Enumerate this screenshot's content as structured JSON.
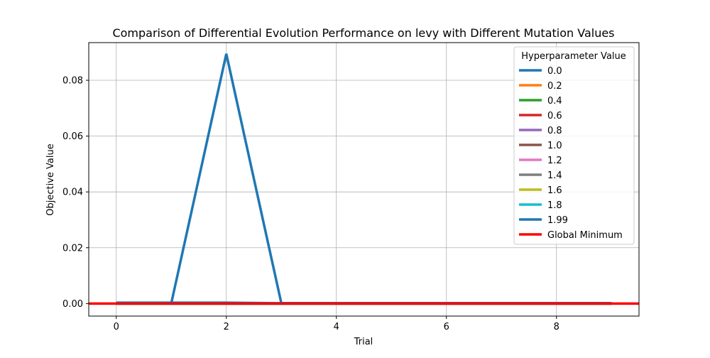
{
  "chart_data": {
    "type": "line",
    "title": "Comparison of Differential Evolution Performance on levy with Different Mutation Values",
    "xlabel": "Trial",
    "ylabel": "Objective Value",
    "xlim": [
      -0.5,
      9.5
    ],
    "ylim": [
      -0.0045,
      0.0935
    ],
    "xticks": [
      0,
      2,
      4,
      6,
      8
    ],
    "xtick_labels": [
      "0",
      "2",
      "4",
      "6",
      "8"
    ],
    "yticks": [
      0.0,
      0.02,
      0.04,
      0.06,
      0.08
    ],
    "ytick_labels": [
      "0.00",
      "0.02",
      "0.04",
      "0.06",
      "0.08"
    ],
    "grid": true,
    "legend": {
      "title": "Hyperparameter Value",
      "placement": "upper-right"
    },
    "x": [
      0,
      1,
      2,
      3,
      4,
      5,
      6,
      7,
      8,
      9
    ],
    "series": [
      {
        "name": "0.0",
        "color": "#1f77b4",
        "values": [
          0.0001,
          0.0001,
          0.0895,
          0.0001,
          0.0001,
          0.0001,
          0.0001,
          0.0001,
          0.0001,
          0.0001
        ]
      },
      {
        "name": "0.2",
        "color": "#ff7f0e",
        "values": [
          0,
          0,
          0,
          0,
          0,
          0,
          0,
          0,
          0,
          0
        ]
      },
      {
        "name": "0.4",
        "color": "#2ca02c",
        "values": [
          0,
          0,
          0,
          0,
          0,
          0,
          0,
          0,
          0,
          0
        ]
      },
      {
        "name": "0.6",
        "color": "#d62728",
        "values": [
          0,
          0,
          0,
          0,
          0,
          0,
          0,
          0,
          0,
          0
        ]
      },
      {
        "name": "0.8",
        "color": "#9467bd",
        "values": [
          0,
          0,
          0,
          0,
          0,
          0,
          0,
          0,
          0,
          0
        ]
      },
      {
        "name": "1.0",
        "color": "#8c564b",
        "values": [
          0,
          0,
          0,
          0,
          0,
          0,
          0,
          0,
          0,
          0
        ]
      },
      {
        "name": "1.2",
        "color": "#e377c2",
        "values": [
          0,
          0,
          0,
          0,
          0,
          0,
          0,
          0,
          0,
          0
        ]
      },
      {
        "name": "1.4",
        "color": "#7f7f7f",
        "values": [
          0,
          0,
          0,
          0,
          0,
          0,
          0,
          0,
          0,
          0
        ]
      },
      {
        "name": "1.6",
        "color": "#bcbd22",
        "values": [
          0,
          0,
          0,
          0,
          0,
          0,
          0,
          0,
          0,
          0
        ]
      },
      {
        "name": "1.8",
        "color": "#17becf",
        "values": [
          0,
          0,
          0,
          0,
          0,
          0,
          0,
          0,
          0,
          0
        ]
      },
      {
        "name": "1.99",
        "color": "#1f77b4",
        "values": [
          0.0003,
          0.0003,
          0.0003,
          0.0001,
          0.0001,
          0.0001,
          0.0001,
          0.0001,
          0.0001,
          0.0001
        ]
      }
    ],
    "reference_line": {
      "name": "Global Minimum",
      "color": "#ff0000",
      "y": 0.0
    }
  }
}
